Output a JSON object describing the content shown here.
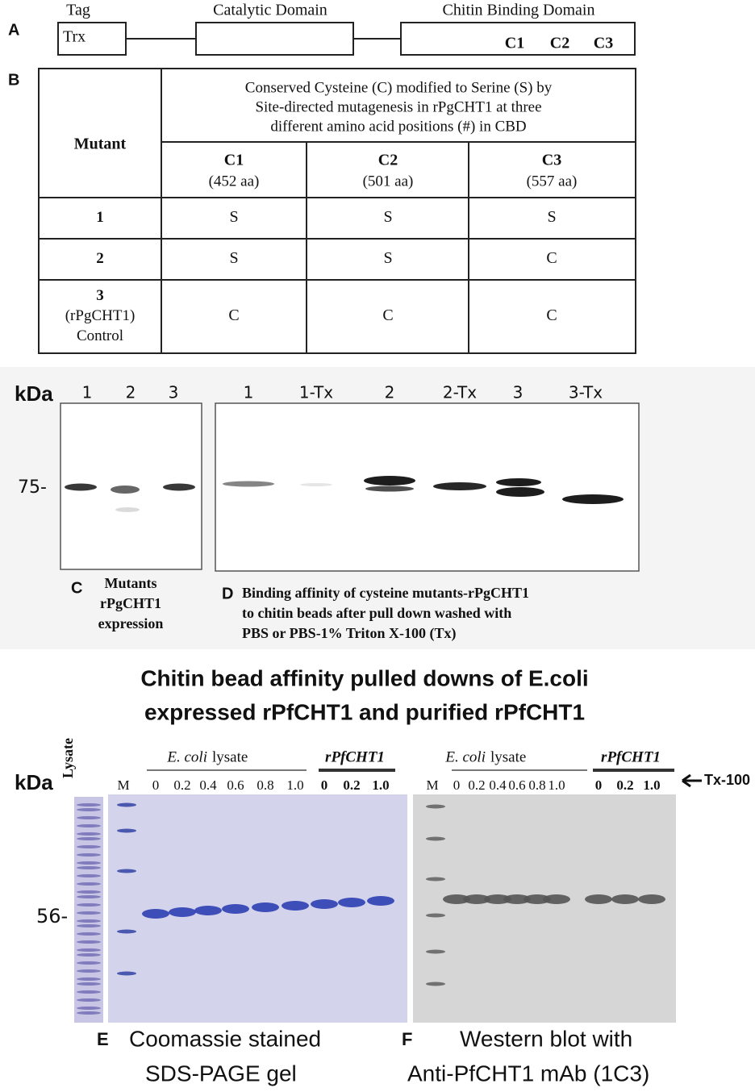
{
  "panel_a": {
    "letter": "A",
    "tag_label": "Tag",
    "tag_box": "Trx",
    "catalytic_label": "Catalytic Domain",
    "cbd_label": "Chitin Binding Domain",
    "cbd_sites": [
      "C1",
      "C2",
      "C3"
    ]
  },
  "panel_b": {
    "letter": "B",
    "table": {
      "mutant_header": "Mutant",
      "group_header": [
        "Conserved Cysteine (C) modified to Serine (S) by",
        "Site-directed mutagenesis in rPgCHT1 at three",
        "different amino acid positions (#) in CBD"
      ],
      "columns": [
        {
          "name": "C1",
          "position": "(452 aa)"
        },
        {
          "name": "C2",
          "position": "(501 aa)"
        },
        {
          "name": "C3",
          "position": "(557 aa)"
        }
      ],
      "rows": [
        {
          "mutant": [
            "1"
          ],
          "cells": [
            "S",
            "S",
            "S"
          ]
        },
        {
          "mutant": [
            "2"
          ],
          "cells": [
            "S",
            "S",
            "C"
          ]
        },
        {
          "mutant": [
            "3",
            "(rPgCHT1)",
            "Control"
          ],
          "cells": [
            "C",
            "C",
            "C"
          ]
        }
      ]
    }
  },
  "panel_c": {
    "letter": "C",
    "kda": "kDa",
    "lanes": [
      "1",
      "2",
      "3"
    ],
    "marker": "75-",
    "caption": [
      "Mutants",
      "rPgCHT1",
      "expression"
    ]
  },
  "panel_d": {
    "letter": "D",
    "lanes": [
      "1",
      "1-Tx",
      "2",
      "2-Tx",
      "3",
      "3-Tx"
    ],
    "caption": [
      "Binding affinity of cysteine mutants-rPgCHT1",
      "to chitin beads after pull down washed with",
      "PBS or PBS-1% Triton X-100 (Tx)"
    ]
  },
  "panel_ef": {
    "title": [
      "Chitin bead affinity pulled downs of E.coli",
      "expressed rPfCHT1 and purified  rPfCHT1"
    ],
    "kda": "kDa",
    "lysate": "Lysate",
    "marker": "56-",
    "tx_label": "Tx-100"
  },
  "panel_e": {
    "letter": "E",
    "marker_lane": "M",
    "group_1": {
      "italic": "E. coli",
      "text": "lysate"
    },
    "group_2": "rPfCHT1",
    "lanes": [
      "0",
      "0.2",
      "0.4",
      "0.6",
      "0.8",
      "1.0",
      "0",
      "0.2",
      "1.0"
    ],
    "caption": [
      "Coomassie stained",
      "SDS-PAGE gel"
    ]
  },
  "panel_f": {
    "letter": "F",
    "marker_lane": "M",
    "group_1": {
      "italic": "E. coli",
      "text": "lysate"
    },
    "group_2": "rPfCHT1",
    "lanes": [
      "0",
      "0.2",
      "0.4",
      "0.6",
      "0.8",
      "1.0",
      "0",
      "0.2",
      "1.0"
    ],
    "caption": [
      "Western blot with",
      "Anti-PfCHT1 mAb (1C3)"
    ]
  }
}
